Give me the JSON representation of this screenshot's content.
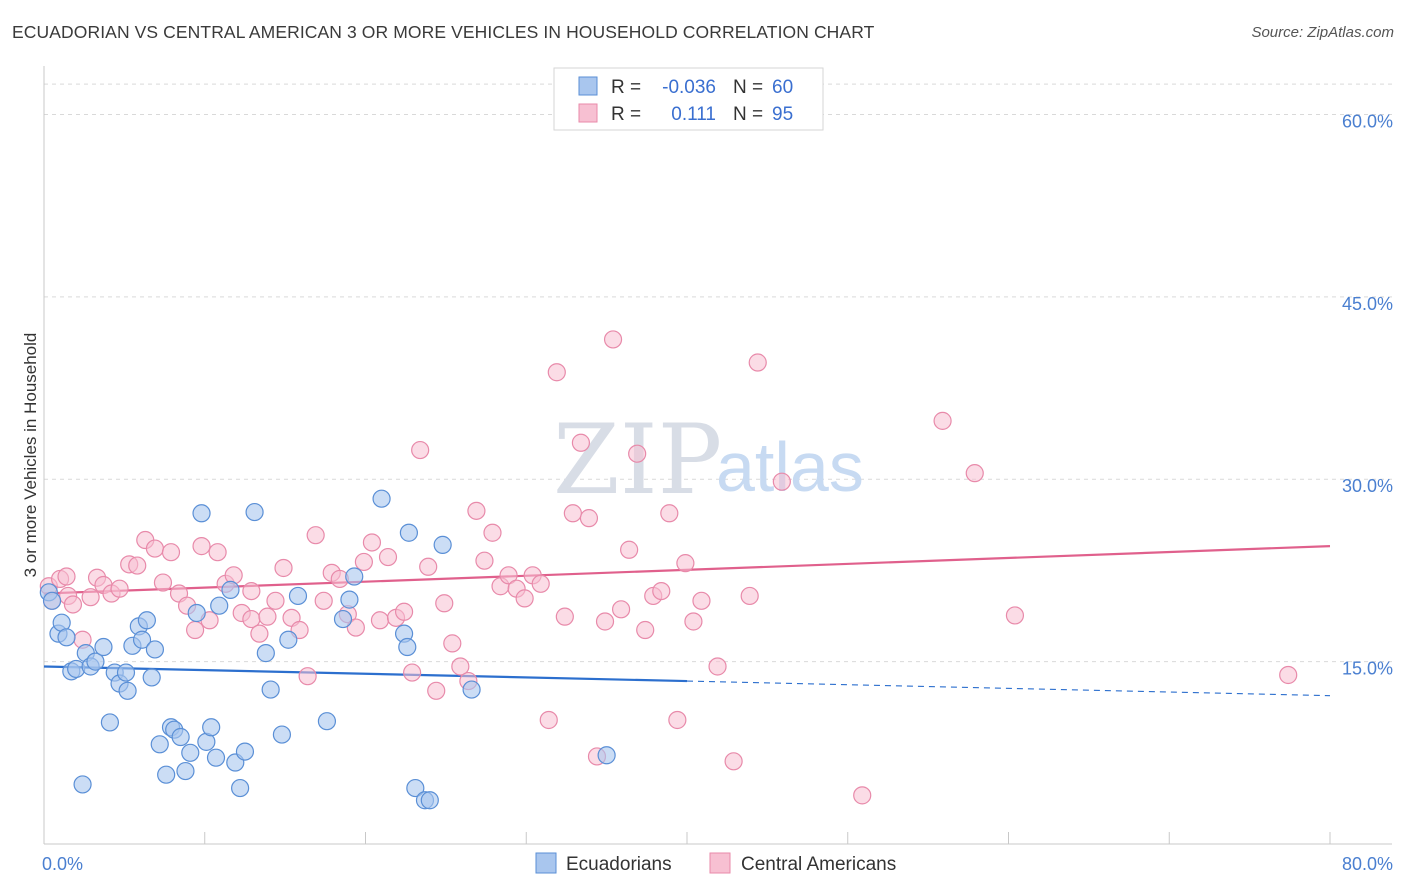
{
  "header": {
    "title": "ECUADORIAN VS CENTRAL AMERICAN 3 OR MORE VEHICLES IN HOUSEHOLD CORRELATION CHART",
    "source": "Source: ZipAtlas.com"
  },
  "watermark": {
    "zip": "ZIP",
    "atlas": "atlas"
  },
  "colors": {
    "blue_fill": "#a9c6ee",
    "blue_stroke": "#5a8fd6",
    "blue_line": "#2c6fce",
    "pink_fill": "#f7c0d2",
    "pink_stroke": "#e88aaa",
    "pink_line": "#e0608c",
    "grid": "#d9d9d9",
    "tick_text": "#4a7fd0"
  },
  "legend_top": {
    "rows": [
      {
        "r_label": "R =",
        "r_value": "-0.036",
        "n_label": "N =",
        "n_value": "60"
      },
      {
        "r_label": "R =",
        "r_value": "0.111",
        "n_label": "N =",
        "n_value": "95"
      }
    ]
  },
  "legend_bottom": {
    "items": [
      "Ecuadorians",
      "Central Americans"
    ]
  },
  "chart_data": {
    "type": "scatter",
    "title": "ECUADORIAN VS CENTRAL AMERICAN 3 OR MORE VEHICLES IN HOUSEHOLD CORRELATION CHART",
    "xlabel": "",
    "ylabel": "3 or more Vehicles in Household",
    "xlim": [
      0,
      80
    ],
    "ylim": [
      0,
      63
    ],
    "x_tick_labels": [
      "0.0%",
      "80.0%"
    ],
    "y_ticks": [
      15,
      30,
      45,
      60
    ],
    "y_tick_labels": [
      "15.0%",
      "30.0%",
      "45.0%",
      "60.0%"
    ],
    "grid": true,
    "legend_position": "top-center",
    "series": [
      {
        "name": "Ecuadorians",
        "r": -0.036,
        "n": 60,
        "trend": {
          "x": [
            0,
            40,
            80
          ],
          "y": [
            14.6,
            13.4,
            12.2
          ],
          "solid_until": 40
        },
        "points": [
          [
            0.3,
            20.7
          ],
          [
            0.5,
            20.0
          ],
          [
            0.9,
            17.3
          ],
          [
            1.1,
            18.2
          ],
          [
            1.4,
            17.0
          ],
          [
            1.7,
            14.2
          ],
          [
            2.0,
            14.4
          ],
          [
            2.4,
            4.9
          ],
          [
            2.6,
            15.7
          ],
          [
            2.9,
            14.6
          ],
          [
            3.2,
            15.0
          ],
          [
            3.7,
            16.2
          ],
          [
            4.1,
            10.0
          ],
          [
            4.4,
            14.1
          ],
          [
            4.7,
            13.2
          ],
          [
            5.1,
            14.1
          ],
          [
            5.2,
            12.6
          ],
          [
            5.5,
            16.3
          ],
          [
            5.9,
            17.9
          ],
          [
            6.1,
            16.8
          ],
          [
            6.4,
            18.4
          ],
          [
            6.7,
            13.7
          ],
          [
            6.9,
            16.0
          ],
          [
            7.2,
            8.2
          ],
          [
            7.6,
            5.7
          ],
          [
            7.9,
            9.6
          ],
          [
            8.1,
            9.4
          ],
          [
            8.5,
            8.8
          ],
          [
            8.8,
            6.0
          ],
          [
            9.1,
            7.5
          ],
          [
            9.5,
            19.0
          ],
          [
            9.8,
            27.2
          ],
          [
            10.1,
            8.4
          ],
          [
            10.4,
            9.6
          ],
          [
            10.7,
            7.1
          ],
          [
            10.9,
            19.6
          ],
          [
            11.6,
            20.9
          ],
          [
            11.9,
            6.7
          ],
          [
            12.2,
            4.6
          ],
          [
            12.5,
            7.6
          ],
          [
            13.1,
            27.3
          ],
          [
            13.8,
            15.7
          ],
          [
            14.1,
            12.7
          ],
          [
            14.8,
            9.0
          ],
          [
            15.2,
            16.8
          ],
          [
            15.8,
            20.4
          ],
          [
            17.6,
            10.1
          ],
          [
            18.6,
            18.5
          ],
          [
            19.3,
            22.0
          ],
          [
            21.0,
            28.4
          ],
          [
            22.4,
            17.3
          ],
          [
            22.6,
            16.2
          ],
          [
            22.7,
            25.6
          ],
          [
            23.1,
            4.6
          ],
          [
            23.7,
            3.6
          ],
          [
            24.0,
            3.6
          ],
          [
            24.8,
            24.6
          ],
          [
            26.6,
            12.7
          ],
          [
            35.0,
            7.3
          ],
          [
            19.0,
            20.1
          ]
        ]
      },
      {
        "name": "Central Americans",
        "r": 0.111,
        "n": 95,
        "trend": {
          "x": [
            0,
            80
          ],
          "y": [
            20.6,
            24.5
          ]
        },
        "points": [
          [
            0.3,
            21.2
          ],
          [
            0.5,
            20.0
          ],
          [
            1.0,
            21.8
          ],
          [
            1.5,
            20.4
          ],
          [
            1.8,
            19.7
          ],
          [
            2.4,
            16.8
          ],
          [
            2.9,
            20.3
          ],
          [
            3.3,
            21.9
          ],
          [
            3.7,
            21.3
          ],
          [
            4.2,
            20.6
          ],
          [
            4.7,
            21.0
          ],
          [
            5.3,
            23.0
          ],
          [
            5.8,
            22.9
          ],
          [
            6.3,
            25.0
          ],
          [
            6.9,
            24.3
          ],
          [
            7.4,
            21.5
          ],
          [
            7.9,
            24.0
          ],
          [
            8.4,
            20.6
          ],
          [
            8.9,
            19.6
          ],
          [
            9.4,
            17.6
          ],
          [
            9.8,
            24.5
          ],
          [
            10.3,
            18.4
          ],
          [
            10.8,
            24.0
          ],
          [
            11.3,
            21.4
          ],
          [
            11.8,
            22.1
          ],
          [
            12.3,
            19.0
          ],
          [
            12.9,
            18.5
          ],
          [
            13.4,
            17.3
          ],
          [
            13.9,
            18.7
          ],
          [
            14.4,
            20.0
          ],
          [
            14.9,
            22.7
          ],
          [
            15.4,
            18.6
          ],
          [
            15.9,
            17.6
          ],
          [
            16.4,
            13.8
          ],
          [
            16.9,
            25.4
          ],
          [
            17.4,
            20.0
          ],
          [
            17.9,
            22.3
          ],
          [
            18.4,
            21.8
          ],
          [
            18.9,
            18.9
          ],
          [
            19.4,
            17.8
          ],
          [
            19.9,
            23.2
          ],
          [
            20.4,
            24.8
          ],
          [
            20.9,
            18.4
          ],
          [
            21.4,
            23.6
          ],
          [
            21.9,
            18.6
          ],
          [
            22.4,
            19.1
          ],
          [
            22.9,
            14.1
          ],
          [
            23.4,
            32.4
          ],
          [
            23.9,
            22.8
          ],
          [
            24.4,
            12.6
          ],
          [
            24.9,
            19.8
          ],
          [
            25.4,
            16.5
          ],
          [
            25.9,
            14.6
          ],
          [
            26.4,
            13.4
          ],
          [
            26.9,
            27.4
          ],
          [
            27.4,
            23.3
          ],
          [
            27.9,
            25.6
          ],
          [
            28.4,
            21.2
          ],
          [
            28.9,
            22.1
          ],
          [
            29.4,
            21.0
          ],
          [
            29.9,
            20.2
          ],
          [
            30.4,
            22.1
          ],
          [
            30.9,
            21.4
          ],
          [
            31.4,
            10.2
          ],
          [
            31.9,
            38.8
          ],
          [
            32.4,
            18.7
          ],
          [
            32.9,
            27.2
          ],
          [
            33.4,
            33.0
          ],
          [
            33.9,
            26.8
          ],
          [
            34.4,
            7.2
          ],
          [
            34.9,
            18.3
          ],
          [
            35.4,
            41.5
          ],
          [
            35.9,
            19.3
          ],
          [
            36.4,
            24.2
          ],
          [
            36.9,
            32.1
          ],
          [
            37.4,
            17.6
          ],
          [
            37.9,
            20.4
          ],
          [
            38.4,
            20.8
          ],
          [
            38.9,
            27.2
          ],
          [
            39.4,
            10.2
          ],
          [
            39.9,
            23.1
          ],
          [
            40.4,
            18.3
          ],
          [
            40.9,
            20.0
          ],
          [
            41.9,
            14.6
          ],
          [
            42.9,
            6.8
          ],
          [
            43.9,
            20.4
          ],
          [
            44.4,
            39.6
          ],
          [
            45.9,
            29.8
          ],
          [
            50.9,
            4.0
          ],
          [
            55.9,
            34.8
          ],
          [
            57.9,
            30.5
          ],
          [
            60.4,
            18.8
          ],
          [
            77.4,
            13.9
          ],
          [
            1.4,
            22.0
          ],
          [
            12.9,
            20.8
          ]
        ]
      }
    ]
  }
}
